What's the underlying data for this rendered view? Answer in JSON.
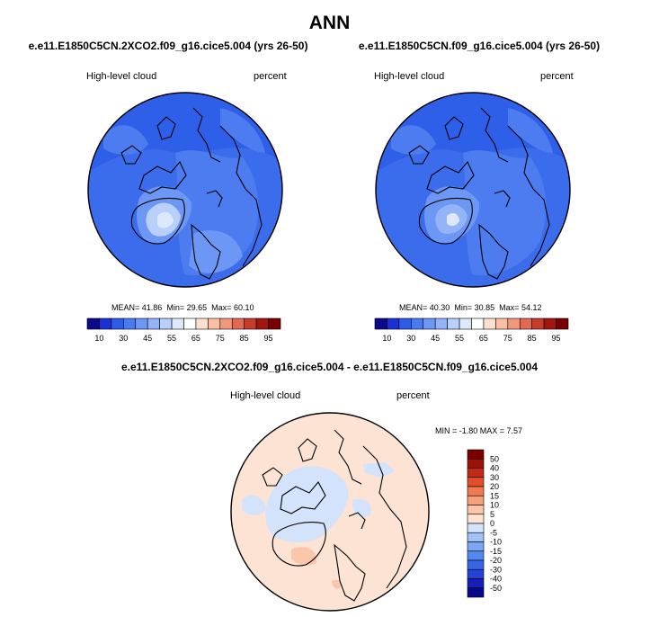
{
  "page": {
    "title": "ANN"
  },
  "panels": [
    {
      "case": "e.e11.E1850C5CN.2XCO2.f09_g16.cice5.004 (yrs 26-50)",
      "variable": "High-level cloud",
      "units": "percent",
      "mean_label": "MEAN=",
      "mean": "41.86",
      "min_label": "Min=",
      "min": "29.65",
      "max_label": "Max=",
      "max": "60.10"
    },
    {
      "case": "e.e11.E1850C5CN.f09_g16.cice5.004 (yrs 26-50)",
      "variable": "High-level cloud",
      "units": "percent",
      "mean_label": "MEAN=",
      "mean": "40.30",
      "min_label": "Min=",
      "min": "30.85",
      "max_label": "Max=",
      "max": "54.12"
    }
  ],
  "diff_panel": {
    "case": "e.e11.E1850C5CN.2XCO2.f09_g16.cice5.004 - e.e11.E1850C5CN.f09_g16.cice5.004",
    "variable": "High-level cloud",
    "units": "percent",
    "stats_text": "MIN =  -1.80 MAX =   7.57"
  },
  "chart_data": [
    {
      "type": "heatmap",
      "projection": "north polar stereographic",
      "title": "e.e11.E1850C5CN.2XCO2.f09_g16.cice5.004 (yrs 26-50)",
      "variable": "High-level cloud",
      "units": "percent",
      "mean": 41.86,
      "min": 29.65,
      "max": 60.1,
      "colorbar": {
        "orientation": "horizontal",
        "levels": [
          10,
          20,
          30,
          40,
          45,
          50,
          55,
          60,
          65,
          70,
          75,
          80,
          85,
          90,
          95
        ],
        "tick_labels": [
          "10",
          "30",
          "45",
          "55",
          "65",
          "75",
          "85",
          "95"
        ],
        "colors": [
          "#0a0a8a",
          "#1a2fd6",
          "#2d5ce8",
          "#4a7af0",
          "#6d97f4",
          "#93b4f7",
          "#b9d0fa",
          "#dde8fc",
          "#ffffff",
          "#fde0d0",
          "#f9bfa4",
          "#f2987a",
          "#e06a4f",
          "#c63b2a",
          "#a0170f",
          "#7a0000"
        ]
      }
    },
    {
      "type": "heatmap",
      "projection": "north polar stereographic",
      "title": "e.e11.E1850C5CN.f09_g16.cice5.004 (yrs 26-50)",
      "variable": "High-level cloud",
      "units": "percent",
      "mean": 40.3,
      "min": 30.85,
      "max": 54.12,
      "colorbar": {
        "orientation": "horizontal",
        "levels": [
          10,
          20,
          30,
          40,
          45,
          50,
          55,
          60,
          65,
          70,
          75,
          80,
          85,
          90,
          95
        ],
        "tick_labels": [
          "10",
          "30",
          "45",
          "55",
          "65",
          "75",
          "85",
          "95"
        ],
        "colors": [
          "#0a0a8a",
          "#1a2fd6",
          "#2d5ce8",
          "#4a7af0",
          "#6d97f4",
          "#93b4f7",
          "#b9d0fa",
          "#dde8fc",
          "#ffffff",
          "#fde0d0",
          "#f9bfa4",
          "#f2987a",
          "#e06a4f",
          "#c63b2a",
          "#a0170f",
          "#7a0000"
        ]
      }
    },
    {
      "type": "heatmap",
      "projection": "north polar stereographic",
      "title": "e.e11.E1850C5CN.2XCO2.f09_g16.cice5.004 - e.e11.E1850C5CN.f09_g16.cice5.004",
      "variable": "High-level cloud",
      "units": "percent",
      "min": -1.8,
      "max": 7.57,
      "colorbar": {
        "orientation": "vertical",
        "levels": [
          -50,
          -40,
          -30,
          -20,
          -15,
          -10,
          -5,
          0,
          5,
          10,
          15,
          20,
          30,
          40,
          50
        ],
        "tick_labels": [
          "50",
          "40",
          "30",
          "20",
          "15",
          "10",
          "5",
          "0",
          "-5",
          "-10",
          "-15",
          "-20",
          "-30",
          "-40",
          "-50"
        ],
        "colors": [
          "#08088a",
          "#1620b8",
          "#2244d6",
          "#3566e6",
          "#5588ee",
          "#7aa6f3",
          "#a2c2f7",
          "#d2e3fb",
          "#fde3d3",
          "#fbc5aa",
          "#f7a07c",
          "#f07a52",
          "#e04e2a",
          "#c22a12",
          "#9c1206",
          "#7a0000"
        ]
      }
    }
  ]
}
